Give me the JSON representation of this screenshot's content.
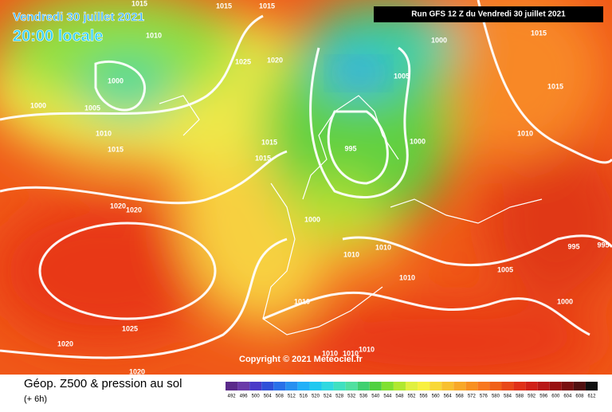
{
  "header": {
    "date": "Vendredi 30 juillet 2021",
    "time": "20:00 locale",
    "run": "Run GFS 12 Z du Vendredi 30 juillet 2021"
  },
  "isobar_labels": [
    "1015",
    "1015",
    "1015",
    "1010",
    "1025",
    "1020",
    "1000",
    "1000",
    "1005",
    "1010",
    "1015",
    "1015",
    "1015",
    "1020",
    "1020",
    "1000",
    "1015",
    "1005",
    "1015",
    "995",
    "1000",
    "1010",
    "1000",
    "1010",
    "1010",
    "995",
    "995",
    "1005",
    "1010",
    "1010",
    "1000",
    "1025",
    "1020",
    "1020",
    "1010",
    "1010",
    "1010"
  ],
  "copyright": "Copyright © 2021 Meteociel.fr",
  "legend": {
    "title": "Géop. Z500 & pression au sol",
    "subtitle": "(+ 6h)",
    "labels": [
      492,
      496,
      500,
      504,
      508,
      512,
      516,
      520,
      524,
      528,
      532,
      536,
      540,
      544,
      548,
      552,
      556,
      560,
      564,
      568,
      572,
      576,
      580,
      584,
      588,
      592,
      596,
      600,
      604,
      608,
      612
    ],
    "colors": [
      "#5a2a8a",
      "#6a3aa8",
      "#4a3ac8",
      "#3050d8",
      "#2a70e8",
      "#2890f0",
      "#22b0f8",
      "#20c8f0",
      "#30d8e0",
      "#40e0c0",
      "#50e0a0",
      "#40d070",
      "#50d040",
      "#80e030",
      "#b0e830",
      "#e0f040",
      "#f8f040",
      "#f8d838",
      "#f8c030",
      "#f8a828",
      "#f89020",
      "#f87820",
      "#f06018",
      "#e84818",
      "#e03018",
      "#d02018",
      "#b81818",
      "#981010",
      "#781010",
      "#501010",
      "#101010"
    ]
  }
}
